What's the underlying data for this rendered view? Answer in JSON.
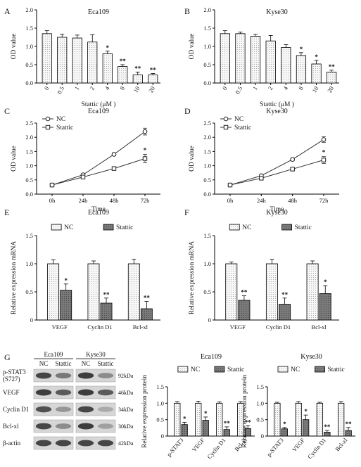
{
  "panels": [
    "A",
    "B",
    "C",
    "D",
    "E",
    "F",
    "G"
  ],
  "colors": {
    "light_bar": "#f4f4f4",
    "dark_bar": "#6f6f6f",
    "line": "#333333"
  },
  "chart_data": [
    {
      "panel": "A",
      "type": "bar",
      "title": "Eca109",
      "categories": [
        "0",
        "0.5",
        "1",
        "2",
        "4",
        "8",
        "10",
        "20"
      ],
      "values": [
        1.35,
        1.25,
        1.23,
        1.12,
        0.8,
        0.45,
        0.22,
        0.22
      ],
      "errors": [
        0.08,
        0.08,
        0.08,
        0.2,
        0.07,
        0.05,
        0.08,
        0.04
      ],
      "sig": [
        "",
        "",
        "",
        "",
        "*",
        "**",
        "**",
        "**"
      ],
      "xlabel": "Stattic (μM )",
      "ylabel": "OD value",
      "ylim": [
        0,
        2.0
      ],
      "yticks": [
        "0.0",
        "0.5",
        "1.0",
        "1.5",
        "2.0"
      ]
    },
    {
      "panel": "B",
      "type": "bar",
      "title": "Kyse30",
      "categories": [
        "0",
        "0.5",
        "1",
        "2",
        "4",
        "8",
        "10",
        "20"
      ],
      "values": [
        1.35,
        1.35,
        1.28,
        1.15,
        0.97,
        0.75,
        0.52,
        0.3
      ],
      "errors": [
        0.08,
        0.04,
        0.05,
        0.15,
        0.08,
        0.08,
        0.1,
        0.05
      ],
      "sig": [
        "",
        "",
        "",
        "",
        "",
        "*",
        "*",
        "**"
      ],
      "xlabel": "Stattic (μM )",
      "ylabel": "OD value",
      "ylim": [
        0,
        2.0
      ],
      "yticks": [
        "0.0",
        "0.5",
        "1.0",
        "1.5",
        "2.0"
      ]
    },
    {
      "panel": "C",
      "type": "line",
      "title": "Eca109",
      "categories": [
        "0h",
        "24h",
        "48h",
        "72h"
      ],
      "series": [
        {
          "name": "NC",
          "marker": "circle",
          "values": [
            0.32,
            0.68,
            1.4,
            2.2
          ],
          "errors": [
            0.03,
            0.04,
            0.05,
            0.12
          ]
        },
        {
          "name": "Stattic",
          "marker": "square",
          "values": [
            0.32,
            0.6,
            0.9,
            1.25
          ],
          "errors": [
            0.03,
            0.04,
            0.05,
            0.15
          ]
        }
      ],
      "sig": [
        "",
        "",
        "",
        "*"
      ],
      "xlabel": "Time",
      "ylabel": "OD value",
      "ylim": [
        0,
        2.5
      ],
      "yticks": [
        "0.0",
        "0.5",
        "1.0",
        "1.5",
        "2.0",
        "2.5"
      ]
    },
    {
      "panel": "D",
      "type": "line",
      "title": "Kyse30",
      "categories": [
        "0h",
        "24h",
        "48h",
        "72h"
      ],
      "series": [
        {
          "name": "NC",
          "marker": "circle",
          "values": [
            0.32,
            0.65,
            1.22,
            1.92
          ],
          "errors": [
            0.03,
            0.04,
            0.05,
            0.1
          ]
        },
        {
          "name": "Stattic",
          "marker": "square",
          "values": [
            0.32,
            0.56,
            0.88,
            1.2
          ],
          "errors": [
            0.03,
            0.04,
            0.05,
            0.12
          ]
        }
      ],
      "sig": [
        "",
        "",
        "",
        "*"
      ],
      "xlabel": "Time",
      "ylabel": "OD value",
      "ylim": [
        0,
        2.5
      ],
      "yticks": [
        "0.0",
        "0.5",
        "1.0",
        "1.5",
        "2.0",
        "2.5"
      ]
    },
    {
      "panel": "E",
      "type": "bar",
      "title": "Eca109",
      "categories": [
        "VEGF",
        "Cyclin D1",
        "Bcl-xl"
      ],
      "series": [
        {
          "name": "NC",
          "values": [
            1.0,
            1.0,
            1.0
          ],
          "errors": [
            0.07,
            0.05,
            0.08
          ]
        },
        {
          "name": "Stattic",
          "values": [
            0.53,
            0.3,
            0.2
          ],
          "errors": [
            0.11,
            0.09,
            0.13
          ]
        }
      ],
      "sig": [
        "*",
        "**",
        "**"
      ],
      "xlabel": "",
      "ylabel": "Relative expression mRNA",
      "ylim": [
        0,
        1.5
      ],
      "yticks": [
        "0",
        "0.5",
        "1.0",
        "1.5"
      ]
    },
    {
      "panel": "F",
      "type": "bar",
      "title": "Kyse30",
      "categories": [
        "VEGF",
        "Cyclin D1",
        "Bcl-xl"
      ],
      "series": [
        {
          "name": "NC",
          "values": [
            1.0,
            1.0,
            1.0
          ],
          "errors": [
            0.03,
            0.08,
            0.05
          ]
        },
        {
          "name": "Stattic",
          "values": [
            0.35,
            0.28,
            0.47
          ],
          "errors": [
            0.08,
            0.11,
            0.14
          ]
        }
      ],
      "sig": [
        "**",
        "**",
        "*"
      ],
      "xlabel": "",
      "ylabel": "Relative expression mRNA",
      "ylim": [
        0,
        1.5
      ],
      "yticks": [
        "0",
        "0.5",
        "1.0",
        "1.5"
      ]
    },
    {
      "panel": "G",
      "type": "bar",
      "title": "Eca109",
      "categories": [
        "p-STAT3",
        "VEGF",
        "Cyclin D1",
        "Bcl-xl"
      ],
      "series": [
        {
          "name": "NC",
          "values": [
            1.0,
            1.0,
            1.0,
            1.0
          ],
          "errors": [
            0.05,
            0.06,
            0.04,
            0.05
          ]
        },
        {
          "name": "Stattic",
          "values": [
            0.35,
            0.48,
            0.2,
            0.23
          ],
          "errors": [
            0.07,
            0.1,
            0.08,
            0.08
          ]
        }
      ],
      "sig": [
        "*",
        "*",
        "**",
        "**"
      ],
      "xlabel": "",
      "ylabel": "Relative expression protein",
      "ylim": [
        0,
        1.5
      ],
      "yticks": [
        "0",
        "0.5",
        "1.0",
        "1.5"
      ]
    },
    {
      "panel": "G",
      "type": "bar",
      "title": "Kyse30",
      "categories": [
        "p-STAT3",
        "VEGF",
        "Cyclin D1",
        "Bcl-xl"
      ],
      "series": [
        {
          "name": "NC",
          "values": [
            1.0,
            1.0,
            1.0,
            1.0
          ],
          "errors": [
            0.03,
            0.05,
            0.03,
            0.05
          ]
        },
        {
          "name": "Stattic",
          "values": [
            0.22,
            0.5,
            0.12,
            0.17
          ],
          "errors": [
            0.04,
            0.14,
            0.05,
            0.09
          ]
        }
      ],
      "sig": [
        "*",
        "*",
        "**",
        "**"
      ],
      "xlabel": "",
      "ylabel": "Relative expression protein",
      "ylim": [
        0,
        1.5
      ],
      "yticks": [
        "0",
        "0.5",
        "1.0",
        "1.5"
      ]
    }
  ],
  "western_blot": {
    "cell_lines": [
      "Eca109",
      "Kyse30"
    ],
    "lanes": [
      "NC",
      "Stattic",
      "NC",
      "Stattic"
    ],
    "proteins": [
      {
        "name": "p-STAT3\n(S727)",
        "kda": "92kDa",
        "bands": [
          0.8,
          0.55,
          0.85,
          0.45
        ]
      },
      {
        "name": "VEGF",
        "kda": "46kDa",
        "bands": [
          0.85,
          0.7,
          0.85,
          0.7
        ]
      },
      {
        "name": "Cyclin D1",
        "kda": "34kDa",
        "bands": [
          0.75,
          0.4,
          0.8,
          0.3
        ]
      },
      {
        "name": "Bcl-xl",
        "kda": "30kDa",
        "bands": [
          0.8,
          0.45,
          0.85,
          0.35
        ]
      },
      {
        "name": "β-actin",
        "kda": "42kDa",
        "bands": [
          0.8,
          0.8,
          0.8,
          0.8
        ]
      }
    ]
  }
}
